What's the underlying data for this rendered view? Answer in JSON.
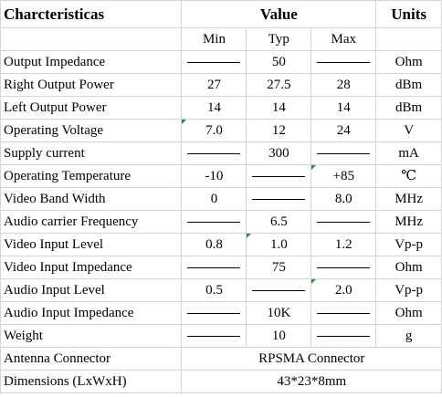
{
  "header": {
    "characteristics": "Charcteristicas",
    "value": "Value",
    "units": "Units"
  },
  "subheader": {
    "min": "Min",
    "typ": "Typ",
    "max": "Max"
  },
  "rows": [
    {
      "name": "Output Impedance",
      "min": null,
      "typ": "50",
      "max": null,
      "unit": "Ohm"
    },
    {
      "name": "Right Output Power",
      "min": "27",
      "typ": "27.5",
      "max": "28",
      "unit": "dBm"
    },
    {
      "name": "Left Output Power",
      "min": "14",
      "typ": "14",
      "max": "14",
      "unit": "dBm"
    },
    {
      "name": "Operating Voltage",
      "min": "7.0",
      "typ": "12",
      "max": "24",
      "unit": "V"
    },
    {
      "name": "Supply current",
      "min": null,
      "typ": "300",
      "max": null,
      "unit": "mA"
    },
    {
      "name": "Operating Temperature",
      "min": "-10",
      "typ": null,
      "max": "+85",
      "unit": "℃"
    },
    {
      "name": "Video Band Width",
      "min": "0",
      "typ": null,
      "max": "8.0",
      "unit": "MHz"
    },
    {
      "name": "Audio carrier Frequency",
      "min": null,
      "typ": "6.5",
      "max": null,
      "unit": "MHz"
    },
    {
      "name": "Video Input Level",
      "min": "0.8",
      "typ": "1.0",
      "max": "1.2",
      "unit": "Vp-p"
    },
    {
      "name": "Video Input Impedance",
      "min": null,
      "typ": "75",
      "max": null,
      "unit": "Ohm"
    },
    {
      "name": "Audio Input Level",
      "min": "0.5",
      "typ": null,
      "max": "2.0",
      "unit": "Vp-p"
    },
    {
      "name": "Audio Input Impedance",
      "min": null,
      "typ": "10K",
      "max": null,
      "unit": "Ohm"
    },
    {
      "name": "Weight",
      "min": null,
      "typ": "10",
      "max": null,
      "unit": "g"
    }
  ],
  "merged_rows": [
    {
      "name": "Antenna Connector",
      "value": "RPSMA Connector"
    },
    {
      "name": "Dimensions (LxWxH)",
      "value": "43*23*8mm"
    }
  ]
}
